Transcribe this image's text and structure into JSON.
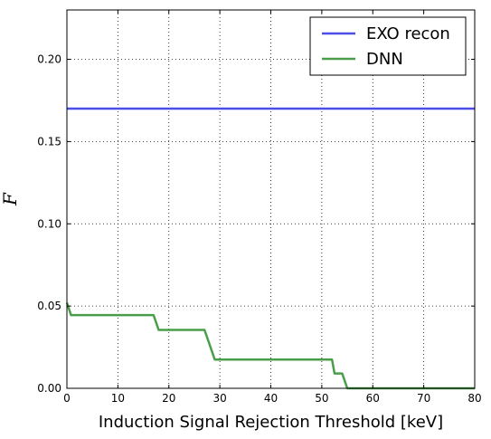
{
  "chart_data": {
    "type": "line",
    "xlabel": "Induction Signal Rejection Threshold [keV]",
    "ylabel": "F",
    "xlim": [
      0,
      80
    ],
    "ylim": [
      0,
      0.23
    ],
    "xticks": [
      0,
      10,
      20,
      30,
      40,
      50,
      60,
      70,
      80
    ],
    "xtick_labels": [
      "0",
      "10",
      "20",
      "30",
      "40",
      "50",
      "60",
      "70",
      "80"
    ],
    "yticks": [
      0,
      0.05,
      0.1,
      0.15,
      0.2
    ],
    "ytick_labels": [
      "0.00",
      "0.05",
      "0.10",
      "0.15",
      "0.20"
    ],
    "grid": true,
    "legend_position": "top-right",
    "series": [
      {
        "name": "EXO recon",
        "color": "#4d4de8",
        "x": [
          0,
          80
        ],
        "y": [
          0.17,
          0.17
        ]
      },
      {
        "name": "DNN",
        "color": "#4a9e4a",
        "x": [
          0,
          0.8,
          17,
          18,
          27,
          29,
          52,
          52.5,
          54,
          55,
          80
        ],
        "y": [
          0.052,
          0.0445,
          0.0445,
          0.0355,
          0.0355,
          0.0175,
          0.0175,
          0.009,
          0.009,
          0.0,
          0.0
        ]
      }
    ]
  }
}
